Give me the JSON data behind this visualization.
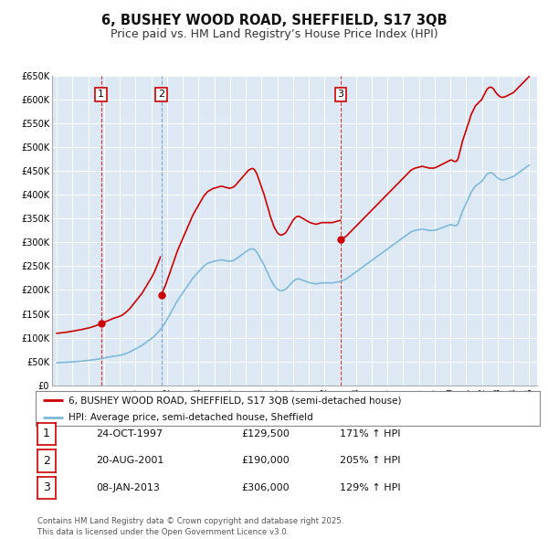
{
  "title": "6, BUSHEY WOOD ROAD, SHEFFIELD, S17 3QB",
  "subtitle": "Price paid vs. HM Land Registry’s House Price Index (HPI)",
  "title_fontsize": 10.5,
  "subtitle_fontsize": 9,
  "background_color": "#ffffff",
  "plot_bg_color": "#dce9f5",
  "grid_color": "#ffffff",
  "hpi_color": "#7fb8d8",
  "property_color": "#cc0000",
  "ylim": [
    0,
    650000
  ],
  "yticks": [
    0,
    50000,
    100000,
    150000,
    200000,
    250000,
    300000,
    350000,
    400000,
    450000,
    500000,
    550000,
    600000,
    650000
  ],
  "ytick_labels": [
    "£0",
    "£50K",
    "£100K",
    "£150K",
    "£200K",
    "£250K",
    "£300K",
    "£350K",
    "£400K",
    "£450K",
    "£500K",
    "£550K",
    "£600K",
    "£650K"
  ],
  "xlim_start": 1994.7,
  "xlim_end": 2025.5,
  "sale1_x": 1997.81,
  "sale1_y": 129500,
  "sale1_label": "1",
  "sale1_vline_color": "#cc0000",
  "sale1_vline_style": "--",
  "sale2_x": 2001.64,
  "sale2_y": 190000,
  "sale2_label": "2",
  "sale2_vline_color": "#7090c0",
  "sale2_vline_style": "--",
  "sale3_x": 2013.02,
  "sale3_y": 306000,
  "sale3_label": "3",
  "sale3_vline_color": "#cc0000",
  "sale3_vline_style": "--",
  "legend_label_property": "6, BUSHEY WOOD ROAD, SHEFFIELD, S17 3QB (semi-detached house)",
  "legend_label_hpi": "HPI: Average price, semi-detached house, Sheffield",
  "table_rows": [
    {
      "num": "1",
      "date": "24-OCT-1997",
      "price": "£129,500",
      "hpi": "171% ↑ HPI"
    },
    {
      "num": "2",
      "date": "20-AUG-2001",
      "price": "£190,000",
      "hpi": "205% ↑ HPI"
    },
    {
      "num": "3",
      "date": "08-JAN-2013",
      "price": "£306,000",
      "hpi": "129% ↑ HPI"
    }
  ],
  "footnote": "Contains HM Land Registry data © Crown copyright and database right 2025.\nThis data is licensed under the Open Government Licence v3.0."
}
